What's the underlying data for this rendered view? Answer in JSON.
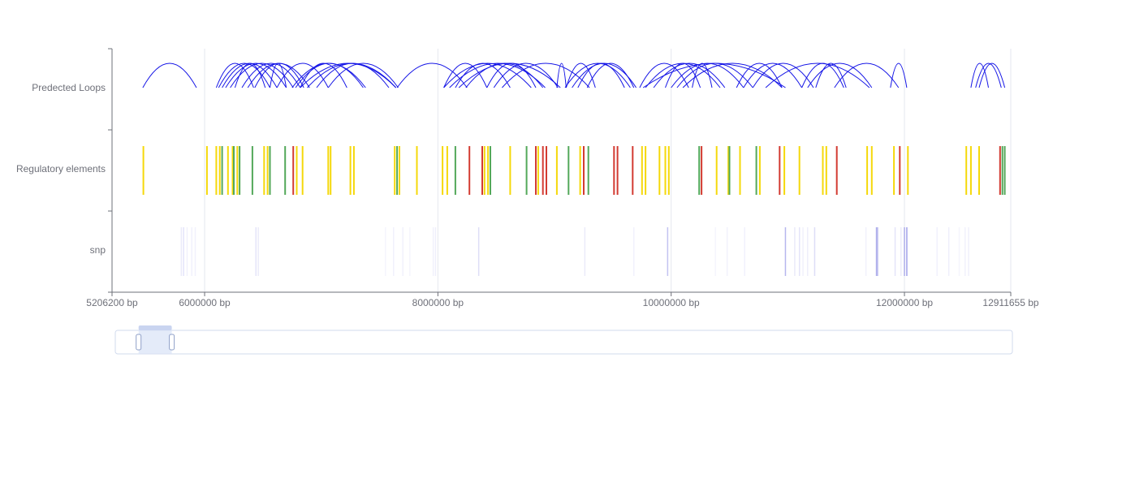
{
  "chart_data": {
    "type": "genome-track",
    "tracks": [
      "Predected Loops",
      "Regulatory elements",
      "snp"
    ],
    "x_axis": {
      "min": 5206200,
      "max": 12911655,
      "unit": "bp",
      "ticks": [
        5206200,
        6000000,
        8000000,
        10000000,
        12000000,
        12911655
      ],
      "tick_labels": [
        "5206200 bp",
        "6000000 bp",
        "8000000 bp",
        "10000000 bp",
        "12000000 bp",
        "12911655 bp"
      ]
    },
    "grid": true,
    "colors": {
      "loop": "#1515e6",
      "snp": "#7a7ae0",
      "grid": "#e4e7ef",
      "axis": "#6e7079"
    },
    "loops": [
      [
        5470000,
        5930000
      ],
      [
        6100000,
        6420000
      ],
      [
        6120000,
        6560000
      ],
      [
        6150000,
        6620000
      ],
      [
        6180000,
        6700000
      ],
      [
        6220000,
        6760000
      ],
      [
        6260000,
        6520000
      ],
      [
        6320000,
        6820000
      ],
      [
        6370000,
        6900000
      ],
      [
        6430000,
        6850000
      ],
      [
        6560000,
        6700000
      ],
      [
        6620000,
        7060000
      ],
      [
        6750000,
        7380000
      ],
      [
        6820000,
        7220000
      ],
      [
        6780000,
        7360000
      ],
      [
        6820000,
        7640000
      ],
      [
        6880000,
        7640000
      ],
      [
        6960000,
        7580000
      ],
      [
        7060000,
        7660000
      ],
      [
        7650000,
        8250000
      ],
      [
        8050000,
        8420000
      ],
      [
        8050000,
        8800000
      ],
      [
        8100000,
        8920000
      ],
      [
        8150000,
        8620000
      ],
      [
        8180000,
        9050000
      ],
      [
        8240000,
        8900000
      ],
      [
        8420000,
        8840000
      ],
      [
        8480000,
        9030000
      ],
      [
        8550000,
        9300000
      ],
      [
        9020000,
        9100000
      ],
      [
        9100000,
        9350000
      ],
      [
        9090000,
        9650000
      ],
      [
        9150000,
        9700000
      ],
      [
        9200000,
        9600000
      ],
      [
        9280000,
        9680000
      ],
      [
        9730000,
        10150000
      ],
      [
        9780000,
        10420000
      ],
      [
        9760000,
        10980000
      ],
      [
        9850000,
        10460000
      ],
      [
        9950000,
        10250000
      ],
      [
        10000000,
        10620000
      ],
      [
        10050000,
        10700000
      ],
      [
        10100000,
        10950000
      ],
      [
        10180000,
        10350000
      ],
      [
        10560000,
        10950000
      ],
      [
        10620000,
        11120000
      ],
      [
        10700000,
        11220000
      ],
      [
        10810000,
        11700000
      ],
      [
        11120000,
        11480000
      ],
      [
        11170000,
        11720000
      ],
      [
        11240000,
        11500000
      ],
      [
        11400000,
        11950000
      ],
      [
        11880000,
        12020000
      ],
      [
        12570000,
        12720000
      ],
      [
        12610000,
        12830000
      ],
      [
        12640000,
        12860000
      ]
    ],
    "regulatory_elements": [
      [
        5475000,
        "yellow"
      ],
      [
        6020000,
        "yellow"
      ],
      [
        6100000,
        "yellow"
      ],
      [
        6130000,
        "yellow"
      ],
      [
        6150000,
        "green"
      ],
      [
        6200000,
        "yellow"
      ],
      [
        6240000,
        "yellow"
      ],
      [
        6250000,
        "green"
      ],
      [
        6280000,
        "yellow"
      ],
      [
        6300000,
        "green"
      ],
      [
        6410000,
        "green"
      ],
      [
        6510000,
        "yellow"
      ],
      [
        6540000,
        "yellow"
      ],
      [
        6560000,
        "green"
      ],
      [
        6690000,
        "green"
      ],
      [
        6760000,
        "red"
      ],
      [
        6790000,
        "yellow"
      ],
      [
        6840000,
        "yellow"
      ],
      [
        7060000,
        "yellow"
      ],
      [
        7080000,
        "yellow"
      ],
      [
        7250000,
        "yellow"
      ],
      [
        7280000,
        "yellow"
      ],
      [
        7630000,
        "yellow"
      ],
      [
        7650000,
        "green"
      ],
      [
        7670000,
        "yellow"
      ],
      [
        7820000,
        "yellow"
      ],
      [
        8040000,
        "yellow"
      ],
      [
        8080000,
        "yellow"
      ],
      [
        8150000,
        "green"
      ],
      [
        8270000,
        "red"
      ],
      [
        8380000,
        "red"
      ],
      [
        8400000,
        "yellow"
      ],
      [
        8430000,
        "yellow"
      ],
      [
        8450000,
        "green"
      ],
      [
        8620000,
        "yellow"
      ],
      [
        8760000,
        "green"
      ],
      [
        8840000,
        "red"
      ],
      [
        8860000,
        "yellow"
      ],
      [
        8900000,
        "red"
      ],
      [
        8930000,
        "red"
      ],
      [
        9020000,
        "yellow"
      ],
      [
        9120000,
        "green"
      ],
      [
        9220000,
        "yellow"
      ],
      [
        9250000,
        "red"
      ],
      [
        9290000,
        "green"
      ],
      [
        9510000,
        "red"
      ],
      [
        9540000,
        "red"
      ],
      [
        9670000,
        "red"
      ],
      [
        9750000,
        "yellow"
      ],
      [
        9780000,
        "yellow"
      ],
      [
        9900000,
        "yellow"
      ],
      [
        9950000,
        "yellow"
      ],
      [
        9980000,
        "yellow"
      ],
      [
        10240000,
        "green"
      ],
      [
        10260000,
        "red"
      ],
      [
        10390000,
        "yellow"
      ],
      [
        10490000,
        "yellow"
      ],
      [
        10500000,
        "green"
      ],
      [
        10590000,
        "yellow"
      ],
      [
        10730000,
        "green"
      ],
      [
        10760000,
        "yellow"
      ],
      [
        10930000,
        "red"
      ],
      [
        10970000,
        "yellow"
      ],
      [
        11100000,
        "yellow"
      ],
      [
        11300000,
        "yellow"
      ],
      [
        11330000,
        "yellow"
      ],
      [
        11420000,
        "red"
      ],
      [
        11680000,
        "yellow"
      ],
      [
        11720000,
        "yellow"
      ],
      [
        11910000,
        "yellow"
      ],
      [
        11960000,
        "red"
      ],
      [
        12030000,
        "yellow"
      ],
      [
        12530000,
        "yellow"
      ],
      [
        12570000,
        "yellow"
      ],
      [
        12640000,
        "yellow"
      ],
      [
        12820000,
        "red"
      ],
      [
        12840000,
        "green"
      ],
      [
        12860000,
        "green"
      ]
    ],
    "snps": [
      [
        5800000,
        0.15
      ],
      [
        5820000,
        0.2
      ],
      [
        5850000,
        0.1
      ],
      [
        5890000,
        0.1
      ],
      [
        5920000,
        0.1
      ],
      [
        6440000,
        0.2
      ],
      [
        6460000,
        0.15
      ],
      [
        7550000,
        0.08
      ],
      [
        7620000,
        0.1
      ],
      [
        7700000,
        0.1
      ],
      [
        7760000,
        0.08
      ],
      [
        7960000,
        0.1
      ],
      [
        7980000,
        0.12
      ],
      [
        8350000,
        0.25
      ],
      [
        9260000,
        0.15
      ],
      [
        9680000,
        0.1
      ],
      [
        9970000,
        0.45
      ],
      [
        10380000,
        0.08
      ],
      [
        10480000,
        0.1
      ],
      [
        10630000,
        0.1
      ],
      [
        10980000,
        0.55
      ],
      [
        11060000,
        0.15
      ],
      [
        11100000,
        0.2
      ],
      [
        11130000,
        0.1
      ],
      [
        11170000,
        0.12
      ],
      [
        11230000,
        0.25
      ],
      [
        11670000,
        0.1
      ],
      [
        11760000,
        0.6
      ],
      [
        11770000,
        0.5
      ],
      [
        11920000,
        0.2
      ],
      [
        11970000,
        0.15
      ],
      [
        12000000,
        0.55
      ],
      [
        12020000,
        0.7
      ],
      [
        12280000,
        0.1
      ],
      [
        12380000,
        0.12
      ],
      [
        12470000,
        0.08
      ],
      [
        12520000,
        0.1
      ],
      [
        12550000,
        0.1
      ]
    ],
    "datazoom": {
      "start_percent": 2.6,
      "end_percent": 6.3
    }
  }
}
